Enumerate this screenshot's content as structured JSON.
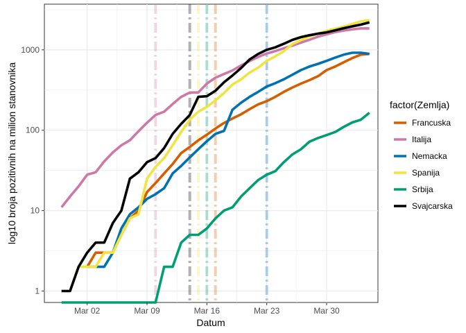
{
  "chart_data": {
    "type": "line",
    "xlabel": "Datum",
    "ylabel": "log10 broja pozitivnih na milion stanovnika",
    "y_scale": "log10",
    "ylim": [
      0.72,
      3700
    ],
    "xlim": [
      "2020-02-26",
      "2020-04-05"
    ],
    "y_ticks": [
      1,
      10,
      100,
      1000
    ],
    "x_ticks": [
      {
        "date": "2020-03-02",
        "label": "Mar 02"
      },
      {
        "date": "2020-03-09",
        "label": "Mar 09"
      },
      {
        "date": "2020-03-16",
        "label": "Mar 16"
      },
      {
        "date": "2020-03-23",
        "label": "Mar 23"
      },
      {
        "date": "2020-03-30",
        "label": "Mar 30"
      }
    ],
    "grid": true,
    "legend": {
      "title": "factor(Zemlja)",
      "placement": "right"
    },
    "x": [
      "2020-02-28",
      "2020-02-29",
      "2020-03-01",
      "2020-03-02",
      "2020-03-03",
      "2020-03-04",
      "2020-03-05",
      "2020-03-06",
      "2020-03-07",
      "2020-03-08",
      "2020-03-09",
      "2020-03-10",
      "2020-03-11",
      "2020-03-12",
      "2020-03-13",
      "2020-03-14",
      "2020-03-15",
      "2020-03-16",
      "2020-03-17",
      "2020-03-18",
      "2020-03-19",
      "2020-03-20",
      "2020-03-21",
      "2020-03-22",
      "2020-03-23",
      "2020-03-24",
      "2020-03-25",
      "2020-03-26",
      "2020-03-27",
      "2020-03-28",
      "2020-03-29",
      "2020-03-30",
      "2020-03-31",
      "2020-04-01",
      "2020-04-02",
      "2020-04-03",
      "2020-04-04"
    ],
    "series": [
      {
        "name": "Francuska",
        "color": "#D55E00",
        "values": [
          null,
          null,
          null,
          2,
          3,
          3,
          3,
          5,
          8,
          10,
          17,
          22,
          29,
          38,
          52,
          62,
          75,
          88,
          105,
          123,
          140,
          158,
          183,
          210,
          230,
          260,
          300,
          340,
          380,
          420,
          470,
          560,
          620,
          700,
          790,
          870,
          890
        ]
      },
      {
        "name": "Italija",
        "color": "#CC79A7",
        "values": [
          11,
          15,
          20,
          28,
          30,
          41,
          53,
          65,
          75,
          97,
          124,
          155,
          170,
          212,
          260,
          295,
          295,
          380,
          450,
          500,
          555,
          640,
          725,
          815,
          900,
          965,
          1045,
          1130,
          1230,
          1335,
          1460,
          1560,
          1660,
          1740,
          1800,
          1850,
          1850
        ]
      },
      {
        "name": "Nemacka",
        "color": "#0072B2",
        "values": [
          null,
          null,
          null,
          2,
          2,
          2,
          3,
          6,
          9,
          11,
          14,
          16,
          19,
          29,
          36,
          46,
          58,
          73,
          90,
          98,
          180,
          220,
          260,
          300,
          350,
          385,
          430,
          490,
          560,
          620,
          670,
          730,
          800,
          870,
          920,
          920,
          890
        ]
      },
      {
        "name": "Spanija",
        "color": "#F0E442",
        "values": [
          1,
          1,
          2,
          2,
          2,
          3,
          3,
          5,
          8,
          9,
          25,
          35,
          45,
          65,
          95,
          135,
          170,
          195,
          235,
          290,
          370,
          430,
          520,
          600,
          730,
          830,
          960,
          1180,
          1320,
          1470,
          1600,
          1720,
          1830,
          1950,
          2100,
          2250,
          2350
        ]
      },
      {
        "name": "Srbija",
        "color": "#009E73",
        "values": [
          null,
          null,
          null,
          null,
          null,
          null,
          null,
          null,
          null,
          null,
          null,
          null,
          2,
          2,
          4,
          5,
          5,
          6,
          8,
          10,
          11,
          15,
          19,
          24,
          28,
          31,
          40,
          50,
          58,
          72,
          80,
          87,
          95,
          110,
          125,
          135,
          165
        ]
      },
      {
        "name": "Svajcarska",
        "color": "#000000",
        "values": [
          1,
          1,
          2,
          3,
          4,
          4,
          7,
          10,
          25,
          30,
          40,
          45,
          60,
          90,
          120,
          155,
          260,
          265,
          310,
          395,
          480,
          595,
          760,
          890,
          1000,
          1075,
          1190,
          1330,
          1440,
          1520,
          1590,
          1650,
          1750,
          1860,
          1960,
          2060,
          2200
        ]
      }
    ],
    "floor_segment": {
      "series": "Srbija",
      "from": "2020-02-28",
      "to": "2020-03-10",
      "value": 0.72
    },
    "vlines": [
      {
        "date": "2020-03-10",
        "color": "#CC79A7"
      },
      {
        "date": "2020-03-14",
        "color": "#000000"
      },
      {
        "date": "2020-03-15",
        "color": "#F0E442"
      },
      {
        "date": "2020-03-16",
        "color": "#009E73"
      },
      {
        "date": "2020-03-17",
        "color": "#D55E00"
      },
      {
        "date": "2020-03-23",
        "color": "#0072B2"
      }
    ]
  }
}
